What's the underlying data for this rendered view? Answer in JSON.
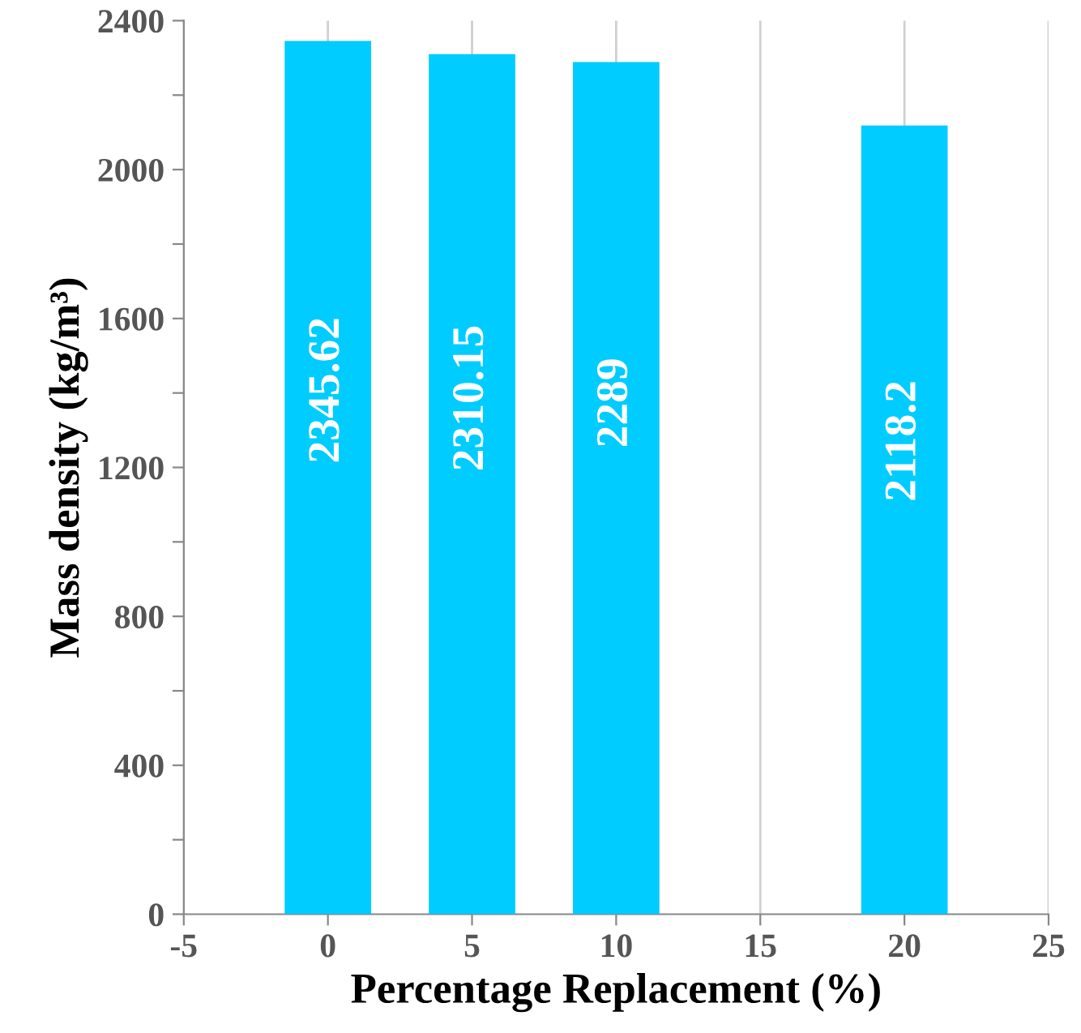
{
  "chart_data": {
    "type": "bar",
    "xlabel": "Percentage Replacement (%)",
    "ylabel": "Mass density (kg/m³)",
    "x": [
      0,
      5,
      10,
      20
    ],
    "values": [
      2345.62,
      2310.15,
      2289,
      2118.2
    ],
    "color": "#00ccff",
    "data_labels": true,
    "xlim": [
      -5,
      25
    ],
    "xticks": [
      -5,
      0,
      5,
      10,
      15,
      20,
      25
    ],
    "ylim": [
      0,
      2400
    ],
    "yticks": [
      0,
      {
        "value": 200,
        "label": null
      },
      400,
      {
        "value": 600,
        "label": null
      },
      800,
      {
        "value": 1000,
        "label": null
      },
      1200,
      {
        "value": 1400,
        "label": null
      },
      1600,
      {
        "value": 1800,
        "label": null
      },
      2000,
      {
        "value": 2200,
        "label": null
      },
      2400
    ],
    "grid": "x"
  }
}
